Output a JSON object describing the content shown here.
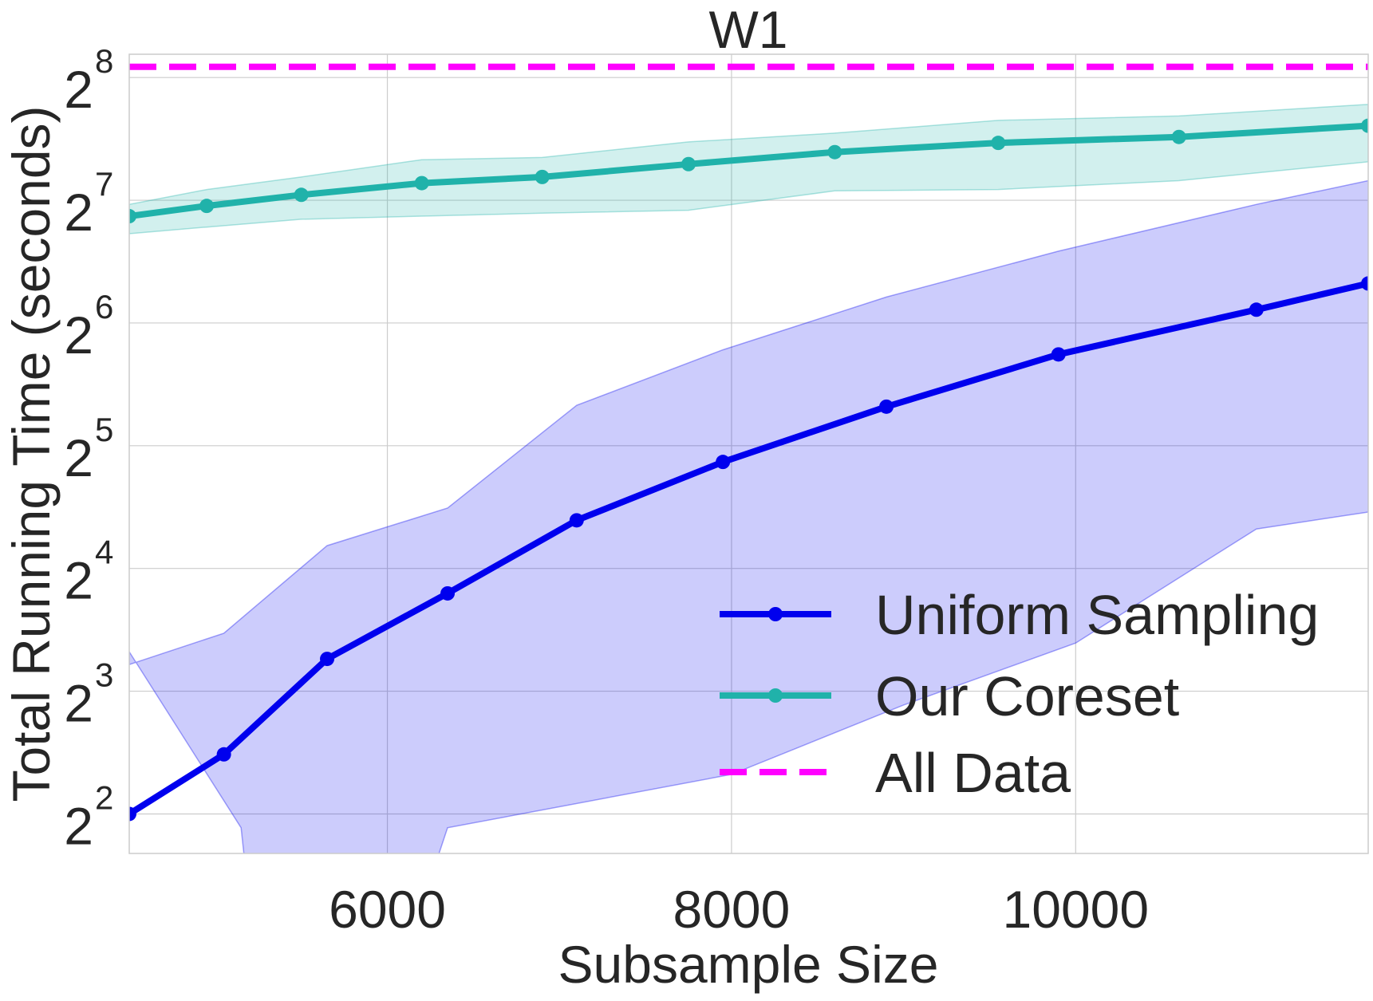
{
  "chart_data": {
    "type": "line",
    "title": "W1",
    "xlabel": "Subsample Size",
    "ylabel": "Total Running Time (seconds)",
    "x_scale": "linear",
    "y_scale": "log2",
    "xlim": [
      4500,
      11700
    ],
    "ylim": [
      3.2,
      292
    ],
    "x_ticks": [
      6000,
      8000,
      10000
    ],
    "x_tick_labels": [
      "6000",
      "8000",
      "10000"
    ],
    "y_ticks": [
      4,
      8,
      16,
      32,
      64,
      128,
      256
    ],
    "y_tick_labels": [
      {
        "base": "2",
        "exp": "2"
      },
      {
        "base": "2",
        "exp": "3"
      },
      {
        "base": "2",
        "exp": "4"
      },
      {
        "base": "2",
        "exp": "5"
      },
      {
        "base": "2",
        "exp": "6"
      },
      {
        "base": "2",
        "exp": "7"
      },
      {
        "base": "2",
        "exp": "8"
      }
    ],
    "grid": true,
    "legend_position": "lower-right",
    "series": [
      {
        "name": "Uniform Sampling",
        "color": "#0000ee",
        "style": "solid-marker",
        "x": [
          4500,
          5050,
          5650,
          6350,
          7100,
          7950,
          8900,
          9900,
          11050,
          11700
        ],
        "y": [
          4.0,
          5.6,
          9.6,
          13.9,
          21.0,
          29.2,
          39.9,
          53.6,
          69.0,
          80.0
        ],
        "band_upper": [
          9.3,
          11.1,
          18.2,
          22.5,
          40.2,
          55.0,
          74.1,
          96.0,
          125.0,
          143.0
        ],
        "band_lower": [
          10.0,
          3.7,
          1.5,
          3.2,
          3.7,
          5.0,
          7.4,
          10.5,
          20.0,
          22.0
        ],
        "band_x_lower": [
          4500,
          5150,
          5250,
          6300,
          6350,
          8000,
          9000,
          10000,
          11050,
          11700
        ]
      },
      {
        "name": "Our Coreset",
        "color": "#20b2aa",
        "style": "solid-marker",
        "x": [
          4500,
          4950,
          5500,
          6200,
          6900,
          7750,
          8600,
          9550,
          10600,
          11700
        ],
        "y": [
          117,
          124,
          132,
          141,
          146,
          157,
          168,
          177,
          183,
          195
        ],
        "band_upper": [
          125,
          136,
          146,
          161,
          163,
          178,
          187,
          201,
          206,
          220
        ],
        "band_lower": [
          106,
          110,
          115,
          117,
          119,
          121,
          135,
          136,
          143,
          159
        ]
      },
      {
        "name": "All Data",
        "color": "#ff00ff",
        "style": "dashed",
        "x": [
          4500,
          11700
        ],
        "y": [
          272,
          272
        ]
      }
    ]
  }
}
